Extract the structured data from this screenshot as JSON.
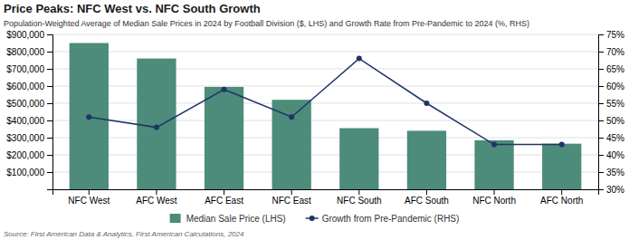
{
  "chart_data": {
    "type": "bar",
    "title": "Price Peaks: NFC West vs. NFC South Growth",
    "subtitle": "Population-Weighted Average of Median Sale Prices in 2024 by Football Division ($, LHS) and Growth Rate from Pre-Pandemic to 2024 (%, RHS)",
    "annotations": [
      "Source: First American Data & Analytics, First American Calculations, 2024"
    ],
    "categories": [
      "NFC West",
      "AFC West",
      "AFC East",
      "NFC East",
      "NFC South",
      "AFC South",
      "NFC North",
      "AFC North"
    ],
    "series": [
      {
        "name": "Median Sale Price (LHS)",
        "type": "bar",
        "color": "#4d8b7a",
        "values": [
          850000,
          760000,
          595000,
          520000,
          355000,
          340000,
          285000,
          265000
        ]
      },
      {
        "name": "Growth from Pre-Pandemic (RHS)",
        "type": "line",
        "color": "#1f3566",
        "marker": "circle",
        "axis": "y2",
        "values": [
          51,
          48,
          59,
          51,
          68,
          55,
          43,
          43
        ]
      }
    ],
    "ylim": [
      0,
      900000
    ],
    "yticks": [
      {
        "value": 100000,
        "label": "$100,000"
      },
      {
        "value": 200000,
        "label": "$200,000"
      },
      {
        "value": 300000,
        "label": "$300,000"
      },
      {
        "value": 400000,
        "label": "$400,000"
      },
      {
        "value": 500000,
        "label": "$500,000"
      },
      {
        "value": 600000,
        "label": "$600,000"
      },
      {
        "value": 700000,
        "label": "$700,000"
      },
      {
        "value": 800000,
        "label": "$800,000"
      },
      {
        "value": 900000,
        "label": "$900,000"
      }
    ],
    "y2lim": [
      30,
      75
    ],
    "y2ticks": [
      {
        "value": 30,
        "label": "30%"
      },
      {
        "value": 35,
        "label": "35%"
      },
      {
        "value": 40,
        "label": "40%"
      },
      {
        "value": 45,
        "label": "45%"
      },
      {
        "value": 50,
        "label": "50%"
      },
      {
        "value": 55,
        "label": "55%"
      },
      {
        "value": 60,
        "label": "60%"
      },
      {
        "value": 65,
        "label": "65%"
      },
      {
        "value": 70,
        "label": "70%"
      },
      {
        "value": 75,
        "label": "75%"
      }
    ],
    "grid": true,
    "legend": "bottom"
  }
}
